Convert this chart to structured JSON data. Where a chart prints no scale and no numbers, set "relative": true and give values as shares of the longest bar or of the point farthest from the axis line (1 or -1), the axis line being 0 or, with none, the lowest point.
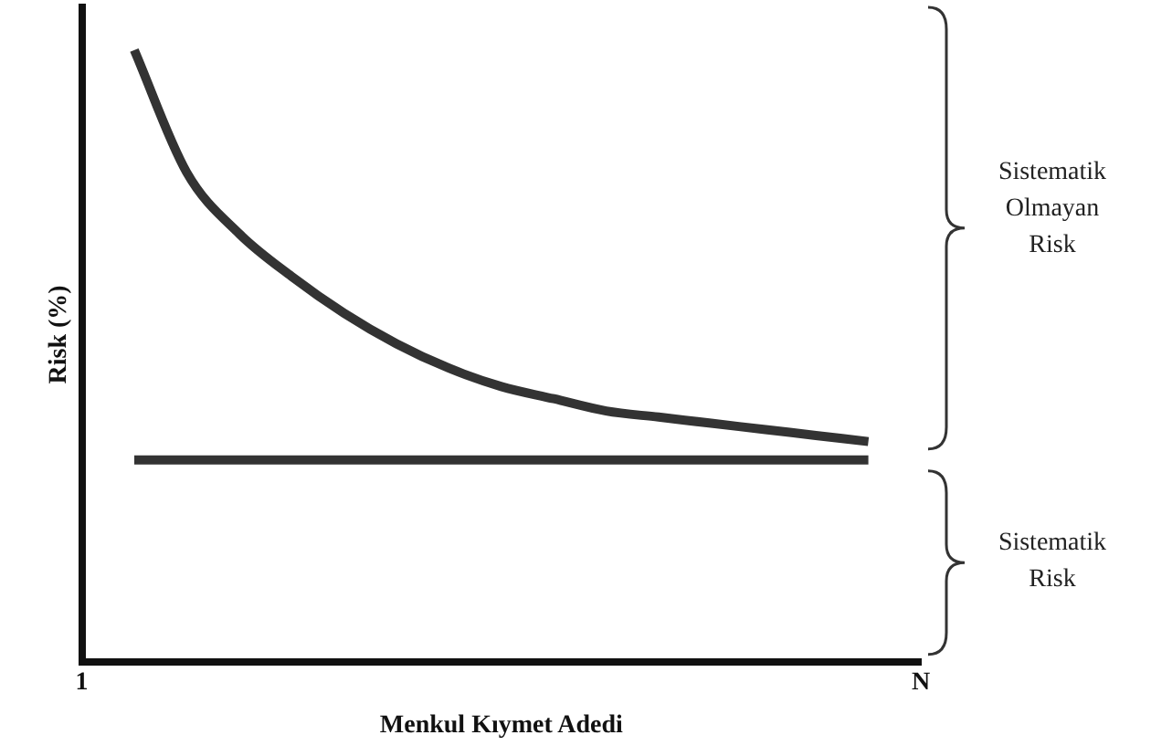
{
  "chart_data": {
    "type": "line",
    "relative": true,
    "xlabel": "Menkul Kıymet Adedi",
    "ylabel": "Risk (%)",
    "categories": [
      "1",
      null,
      null,
      null,
      null,
      null,
      null,
      null,
      null,
      null,
      null,
      null,
      null,
      null,
      null,
      null,
      "N"
    ],
    "grid": false,
    "legend": false,
    "marker": "none",
    "line_style": "solid",
    "tick_labels": "x",
    "series": [
      {
        "color": "#333333",
        "values": [
          null,
          1,
          0.8,
          0.7,
          0.63,
          0.57,
          0.52,
          0.48,
          0.45,
          0.43,
          0.41,
          0.4,
          0.39,
          0.38,
          0.37,
          0.36,
          null
        ]
      },
      {
        "color": "#333333",
        "values": [
          null,
          0.33,
          0.33,
          0.33,
          0.33,
          0.33,
          0.33,
          0.33,
          0.33,
          0.33,
          0.33,
          0.33,
          0.33,
          0.33,
          0.33,
          0.33,
          null
        ]
      }
    ],
    "annotations": [
      "Sistematik Olmayan Risk",
      "Sistematik Risk"
    ]
  }
}
